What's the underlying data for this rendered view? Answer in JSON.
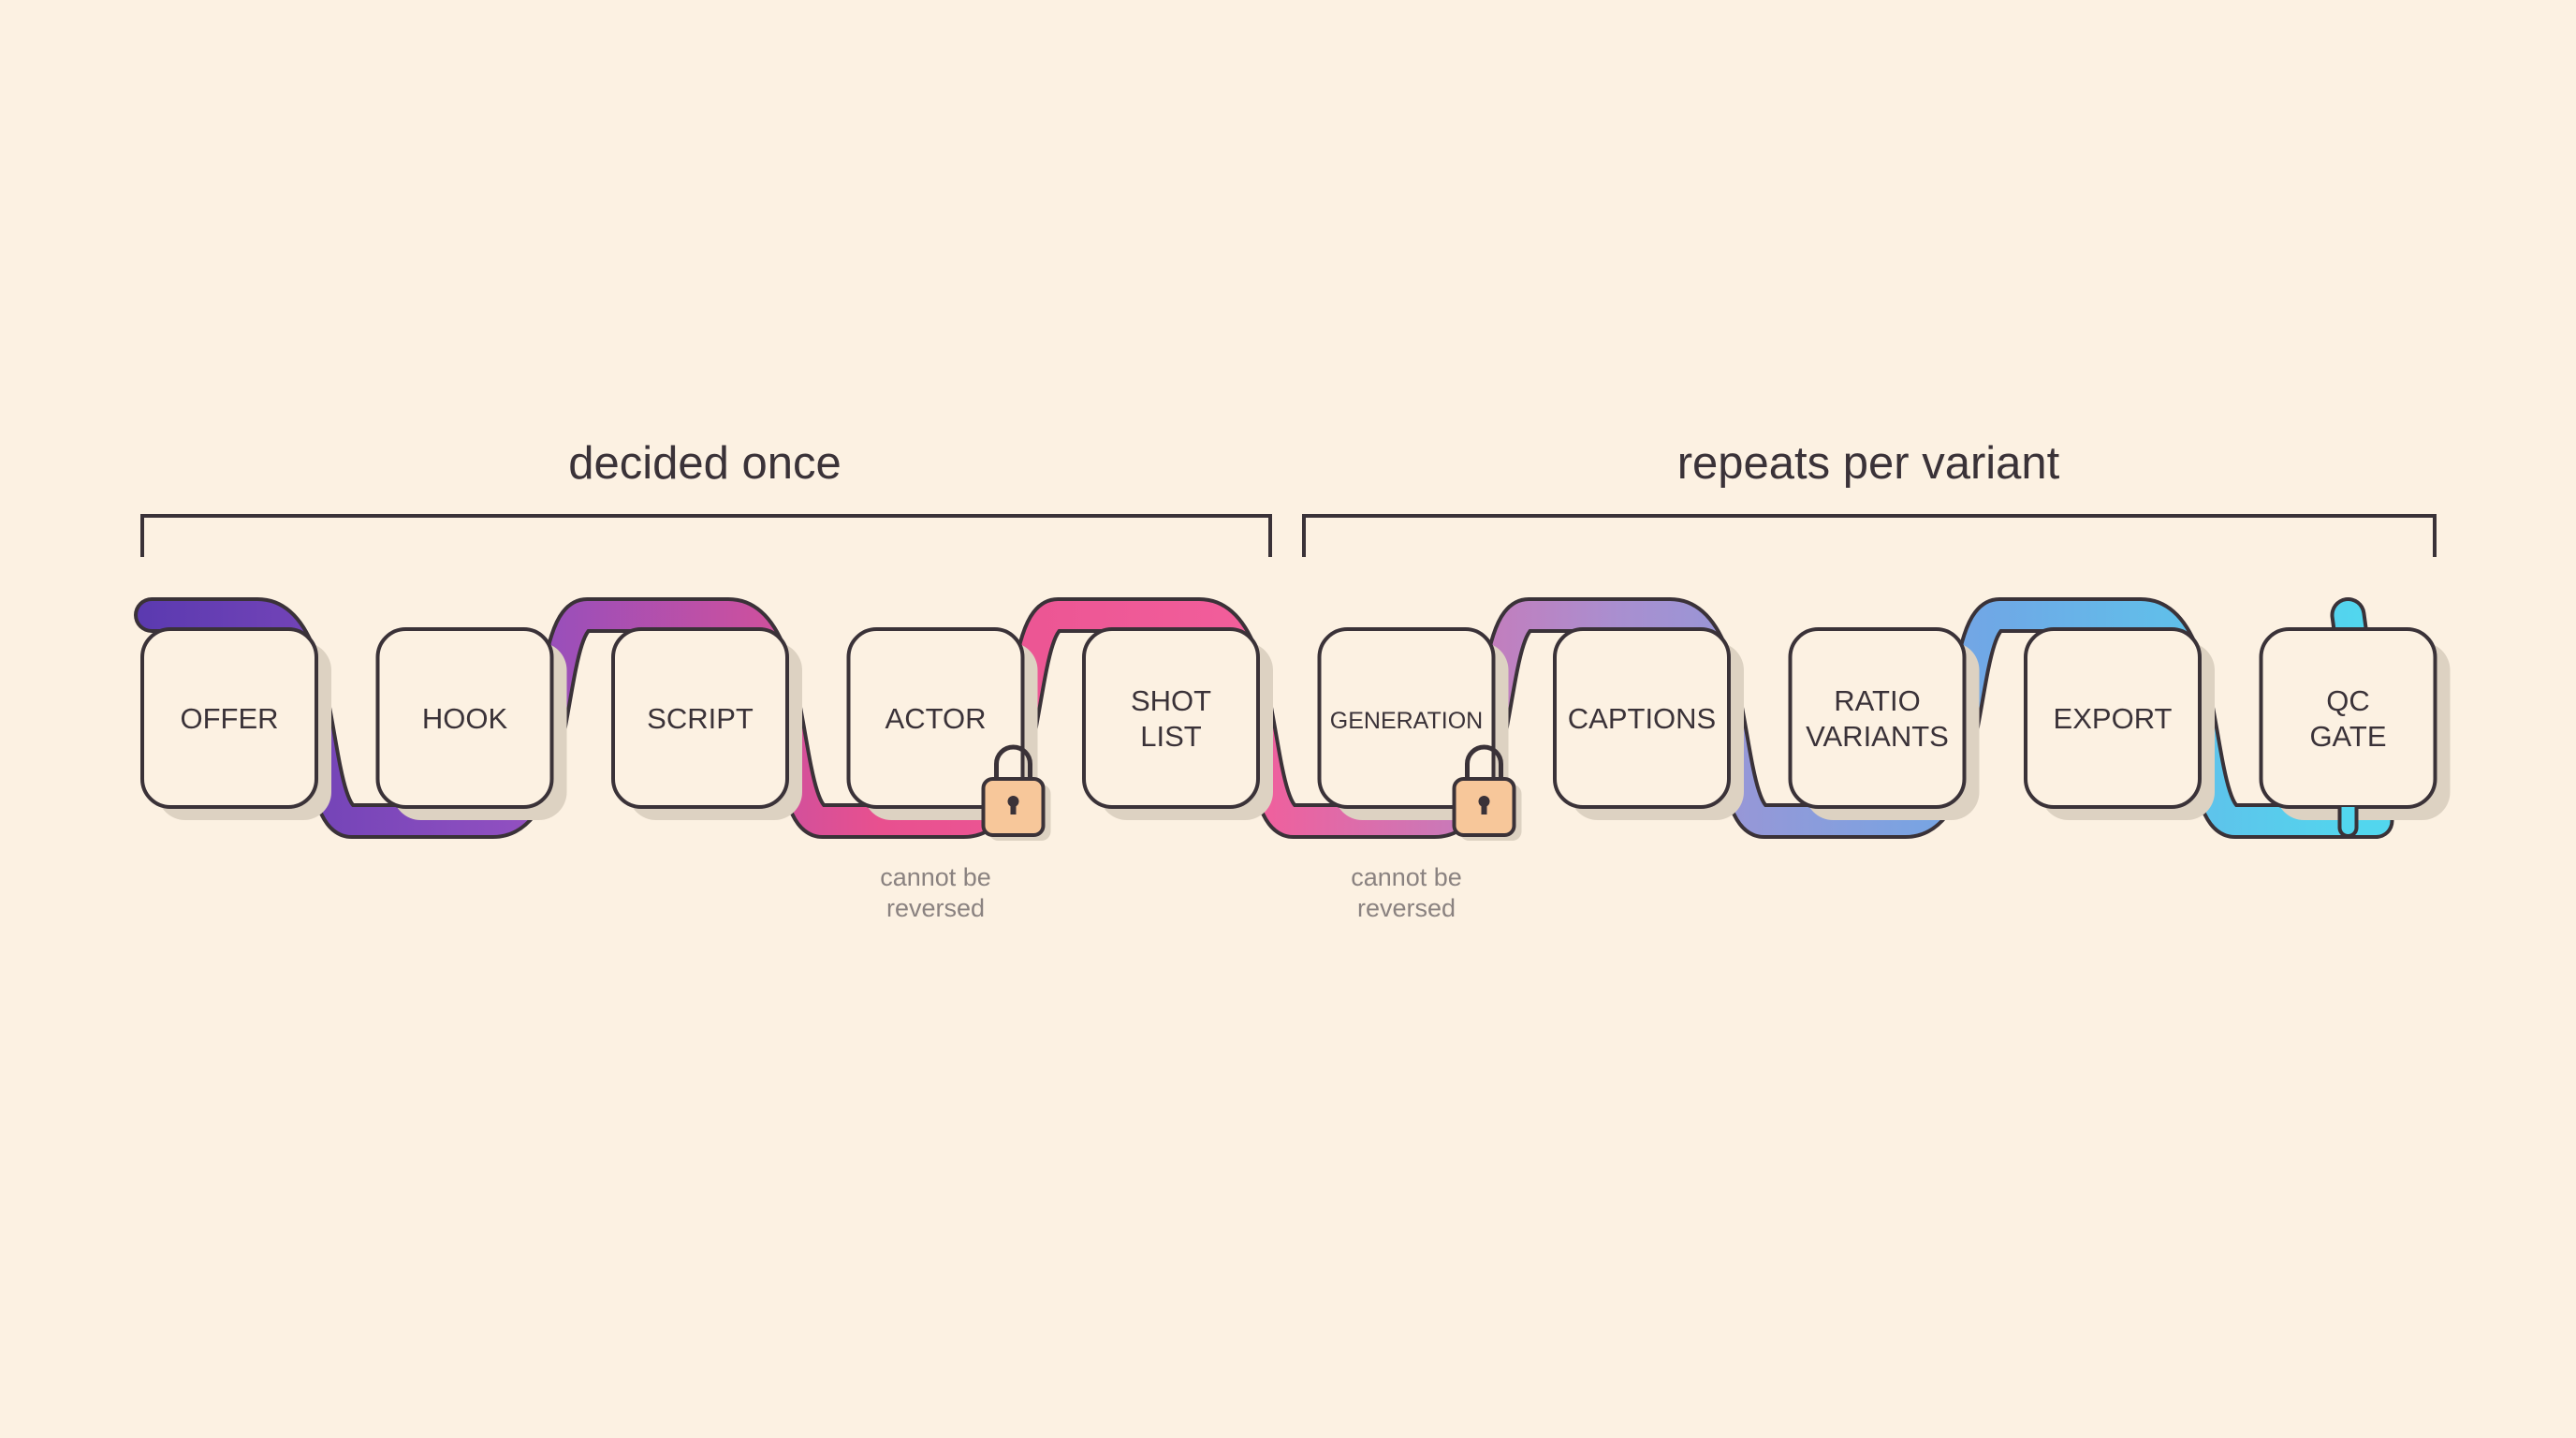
{
  "groups": [
    {
      "label": "decided once"
    },
    {
      "label": "repeats per variant"
    }
  ],
  "stages": [
    {
      "lines": [
        "OFFER"
      ]
    },
    {
      "lines": [
        "HOOK"
      ]
    },
    {
      "lines": [
        "SCRIPT"
      ]
    },
    {
      "lines": [
        "ACTOR"
      ],
      "lock": true,
      "note": [
        "cannot be",
        "reversed"
      ]
    },
    {
      "lines": [
        "SHOT",
        "LIST"
      ]
    },
    {
      "lines": [
        "GENERATION"
      ],
      "small": true,
      "lock": true,
      "note": [
        "cannot be",
        "reversed"
      ]
    },
    {
      "lines": [
        "CAPTIONS"
      ]
    },
    {
      "lines": [
        "RATIO",
        "VARIANTS"
      ]
    },
    {
      "lines": [
        "EXPORT"
      ]
    },
    {
      "lines": [
        "QC",
        "GATE"
      ]
    }
  ],
  "colors": {
    "background": "#fcf1e2",
    "ink": "#3a3238",
    "path_gradient": [
      "#5b3ab0",
      "#8f4fc0",
      "#e8508f",
      "#f25e9b",
      "#a98fd0",
      "#6fa8e6",
      "#52d6ee"
    ],
    "lock_fill": "#f7c79a"
  },
  "icons": {
    "lock": "padlock-icon"
  }
}
